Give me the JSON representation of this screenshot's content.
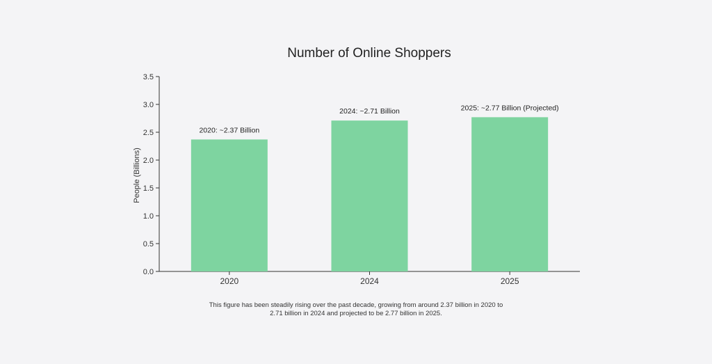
{
  "chart_data": {
    "type": "bar",
    "title": "Number of Online Shoppers",
    "xlabel": "",
    "ylabel": "People (Billions)",
    "categories": [
      "2020",
      "2024",
      "2025"
    ],
    "values": [
      2.37,
      2.71,
      2.77
    ],
    "data_labels": [
      "2020: ~2.37 Billion",
      "2024: ~2.71 Billion",
      "2025: ~2.77 Billion (Projected)"
    ],
    "ylim": [
      0,
      3.5
    ],
    "yticks": [
      "0.0",
      "0.5",
      "1.0",
      "1.5",
      "2.0",
      "2.5",
      "3.0",
      "3.5"
    ],
    "bar_color": "#7ed4a0",
    "grid": false,
    "legend": "none"
  },
  "caption": "This figure has been steadily rising over the past decade, growing from around 2.37 billion in 2020 to 2.71 billion in 2024 and projected to be 2.77 billion in 2025."
}
